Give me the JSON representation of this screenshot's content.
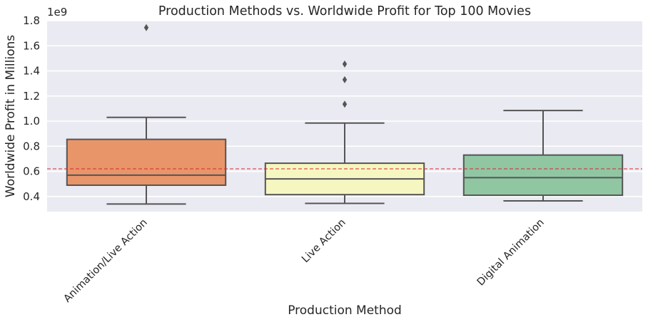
{
  "chart_data": {
    "type": "box",
    "title": "Production Methods vs. Worldwide Profit for Top 100 Movies",
    "xlabel": "Production Method",
    "ylabel": "Worldwide Profit in Millions",
    "y_offset_label": "1e9",
    "ylim": [
      0.28,
      1.8
    ],
    "y_ticks": [
      0.4,
      0.6,
      0.8,
      1.0,
      1.2,
      1.4,
      1.6,
      1.8
    ],
    "y_tick_labels": [
      "0.4",
      "0.6",
      "0.8",
      "1.0",
      "1.2",
      "1.4",
      "1.6",
      "1.8"
    ],
    "grid": true,
    "reference_line": {
      "value": 0.62,
      "color": "#d62728",
      "style": "dashed"
    },
    "categories": [
      "Animation/Live Action",
      "Live Action",
      "Digital Animation"
    ],
    "boxes": [
      {
        "category": "Animation/Live Action",
        "whisker_low": 0.34,
        "q1": 0.49,
        "median": 0.57,
        "q3": 0.855,
        "whisker_high": 1.03,
        "outliers": [
          1.745
        ],
        "color": "#e9956a"
      },
      {
        "category": "Live Action",
        "whisker_low": 0.345,
        "q1": 0.415,
        "median": 0.54,
        "q3": 0.665,
        "whisker_high": 0.985,
        "outliers": [
          1.135,
          1.33,
          1.455
        ],
        "color": "#f6f6c1"
      },
      {
        "category": "Digital Animation",
        "whisker_low": 0.365,
        "q1": 0.41,
        "median": 0.55,
        "q3": 0.73,
        "whisker_high": 1.085,
        "outliers": [],
        "color": "#91c6a3"
      }
    ]
  }
}
